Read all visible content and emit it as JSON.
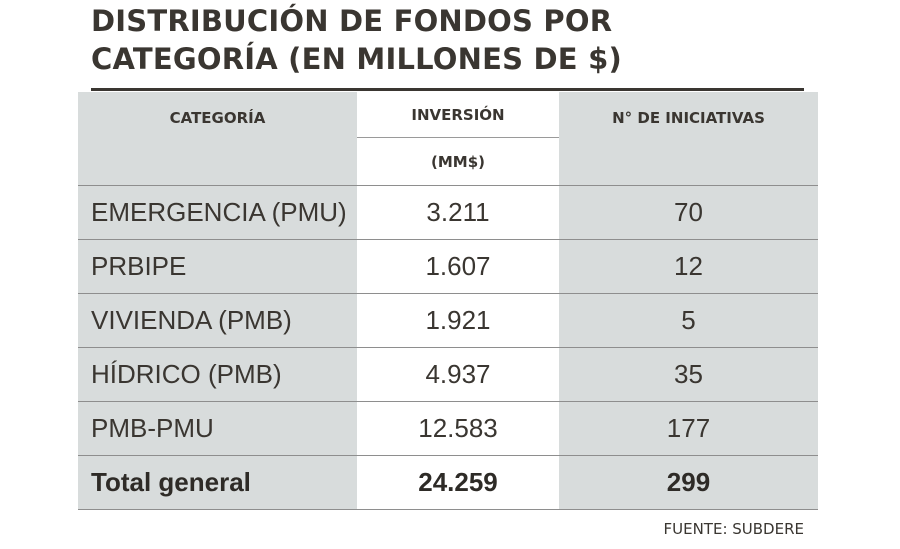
{
  "title_line1": "DISTRIBUCIÓN DE FONDOS POR",
  "title_line2": "CATEGORÍA (EN MILLONES DE $)",
  "headers": {
    "category": "CATEGORÍA",
    "investment": "INVERSIÓN",
    "investment_unit": "(MM$)",
    "initiatives": "N° DE INICIATIVAS"
  },
  "source": "FUENTE: SUBDERE",
  "chart_data": {
    "type": "table",
    "title": "DISTRIBUCIÓN DE FONDOS POR CATEGORÍA (EN MILLONES DE $)",
    "columns": [
      "CATEGORÍA",
      "INVERSIÓN (MM$)",
      "N° DE INICIATIVAS"
    ],
    "rows": [
      [
        "EMERGENCIA (PMU)",
        "3.211",
        "70"
      ],
      [
        "PRBIPE",
        "1.607",
        "12"
      ],
      [
        "VIVIENDA (PMB)",
        "1.921",
        "5"
      ],
      [
        "HÍDRICO (PMB)",
        "4.937",
        "35"
      ],
      [
        "PMB-PMU",
        "12.583",
        "177"
      ]
    ],
    "total": [
      "Total general",
      "24.259",
      "299"
    ]
  }
}
